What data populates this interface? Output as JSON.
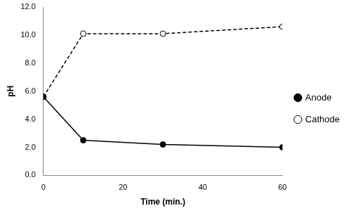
{
  "chart_data": {
    "type": "line",
    "x_label": "Time (min.)",
    "y_label": "pH",
    "x": [
      0,
      10,
      30,
      60
    ],
    "series": [
      {
        "name": "Anode",
        "color": "#000000",
        "values": [
          5.6,
          2.5,
          2.2,
          2.0
        ],
        "marker": "circle",
        "line_style": "solid"
      },
      {
        "name": "Cathode",
        "color": "#000000",
        "values": [
          5.6,
          10.1,
          10.1,
          10.6
        ],
        "marker": "open_circle",
        "line_style": "dashed"
      }
    ],
    "xlim": [
      0,
      60
    ],
    "xticks": [
      0,
      20,
      40,
      60
    ],
    "ylim": [
      0,
      12
    ],
    "yticks": [
      {
        "value": 0,
        "label": "0.0"
      },
      {
        "value": 2,
        "label": "2.0"
      },
      {
        "value": 4,
        "label": "4.0"
      },
      {
        "value": 6,
        "label": "6.0"
      },
      {
        "value": 8,
        "label": "8.0"
      },
      {
        "value": 10,
        "label": "10.0"
      },
      {
        "value": 12,
        "label": "12.0"
      }
    ],
    "grid": false,
    "legend": "right"
  }
}
